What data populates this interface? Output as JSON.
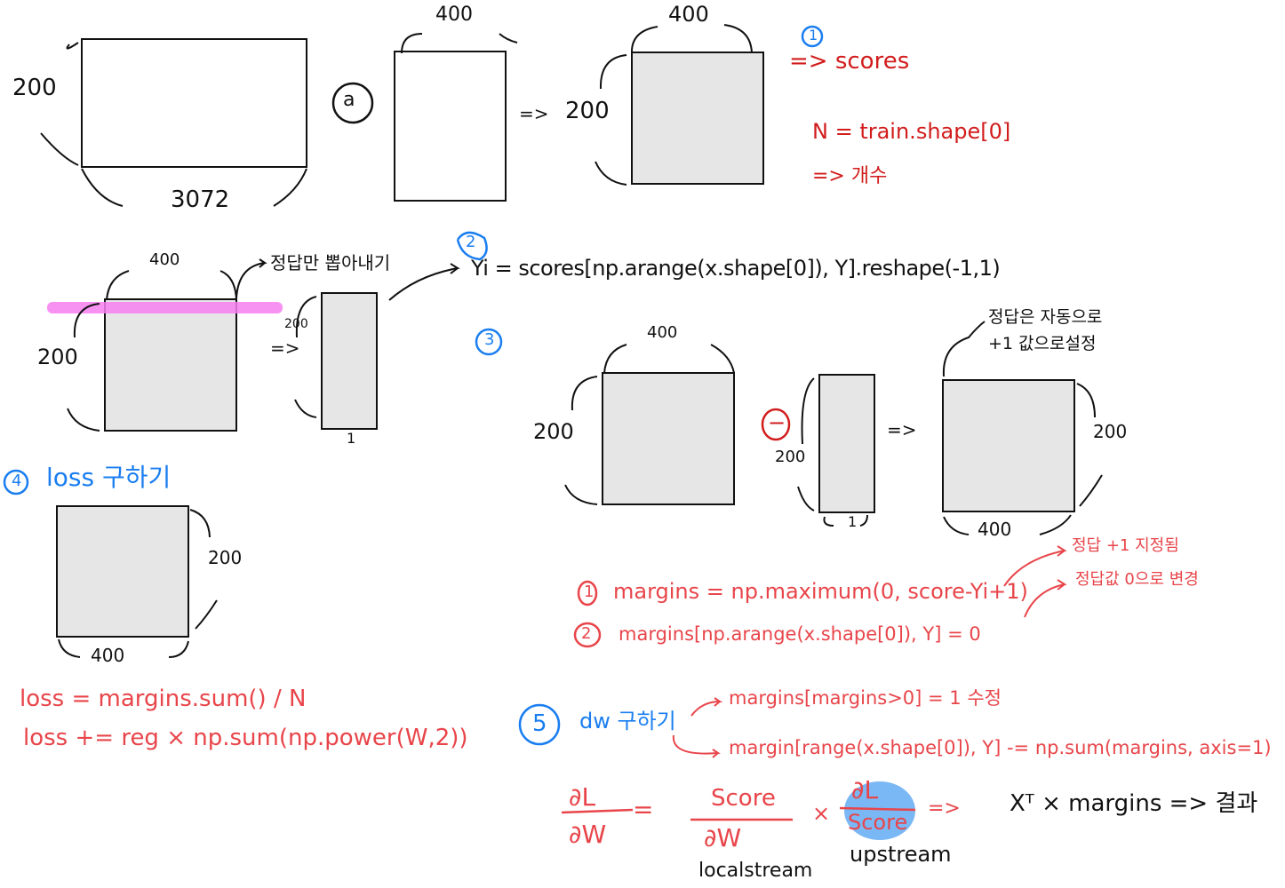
{
  "colors": {
    "ink": "#111111",
    "red": "#e8454a",
    "dark_red": "#d21c1c",
    "blue": "#1a7ef0",
    "box_fill": "#e6e6e6",
    "highlight_pink": "#f77ff0",
    "highlight_blue": "#7ab8f5"
  },
  "top": {
    "dims_r1_h": "200",
    "dims_r1_w": "3072",
    "op_dot": "ⓐ",
    "dims_r2_w": "400",
    "arrow1": "=>",
    "dims_r3_h": "200",
    "dims_r3_w": "400"
  },
  "step1": {
    "num": "1",
    "result": "=> scores",
    "n_def": "N = train.shape[0]",
    "n_note": "=> 개수"
  },
  "step2": {
    "num": "2",
    "dims_w": "400",
    "dims_h": "200",
    "pick_note": "정답만 뽑아내기",
    "arrow": "=>",
    "col_h": "200",
    "col_w": "1",
    "code": "Yi = scores[np.arange(x.shape[0]), Y].reshape(-1,1)"
  },
  "step3": {
    "num": "3",
    "dims_w": "400",
    "dims_h": "200",
    "minus": "−",
    "col_h": "200",
    "col_w": "1",
    "arrow": "=>",
    "res_h": "200",
    "res_w": "400",
    "auto_note_1": "정답은 자동으로",
    "auto_note_2": "+1 값으로설정",
    "line1_num": "1",
    "line1": "margins = np.maximum(0, score-Yi+1)",
    "line2_num": "2",
    "line2": "margins[np.arange(x.shape[0]), Y] = 0",
    "note1": "정답 +1 지정됨",
    "note2": "정답값 0으로 변경"
  },
  "step4": {
    "num": "4",
    "title": "loss 구하기",
    "dims_h": "200",
    "dims_w": "400",
    "line1": "loss = margins.sum() / N",
    "line2": "loss += reg × np.sum(np.power(W,2))"
  },
  "step5": {
    "num": "5",
    "title": "dw 구하기",
    "line1": "margins[margins>0] = 1 수정",
    "line2": "margin[range(x.shape[0]), Y] -= np.sum(margins, axis=1)",
    "dl": "∂L",
    "dw": "∂W",
    "eq": "=",
    "score": "Score",
    "times": "×",
    "arrow": "=>",
    "local": "localstream",
    "up": "upstream",
    "result": "Xᵀ × margins => 결과"
  }
}
